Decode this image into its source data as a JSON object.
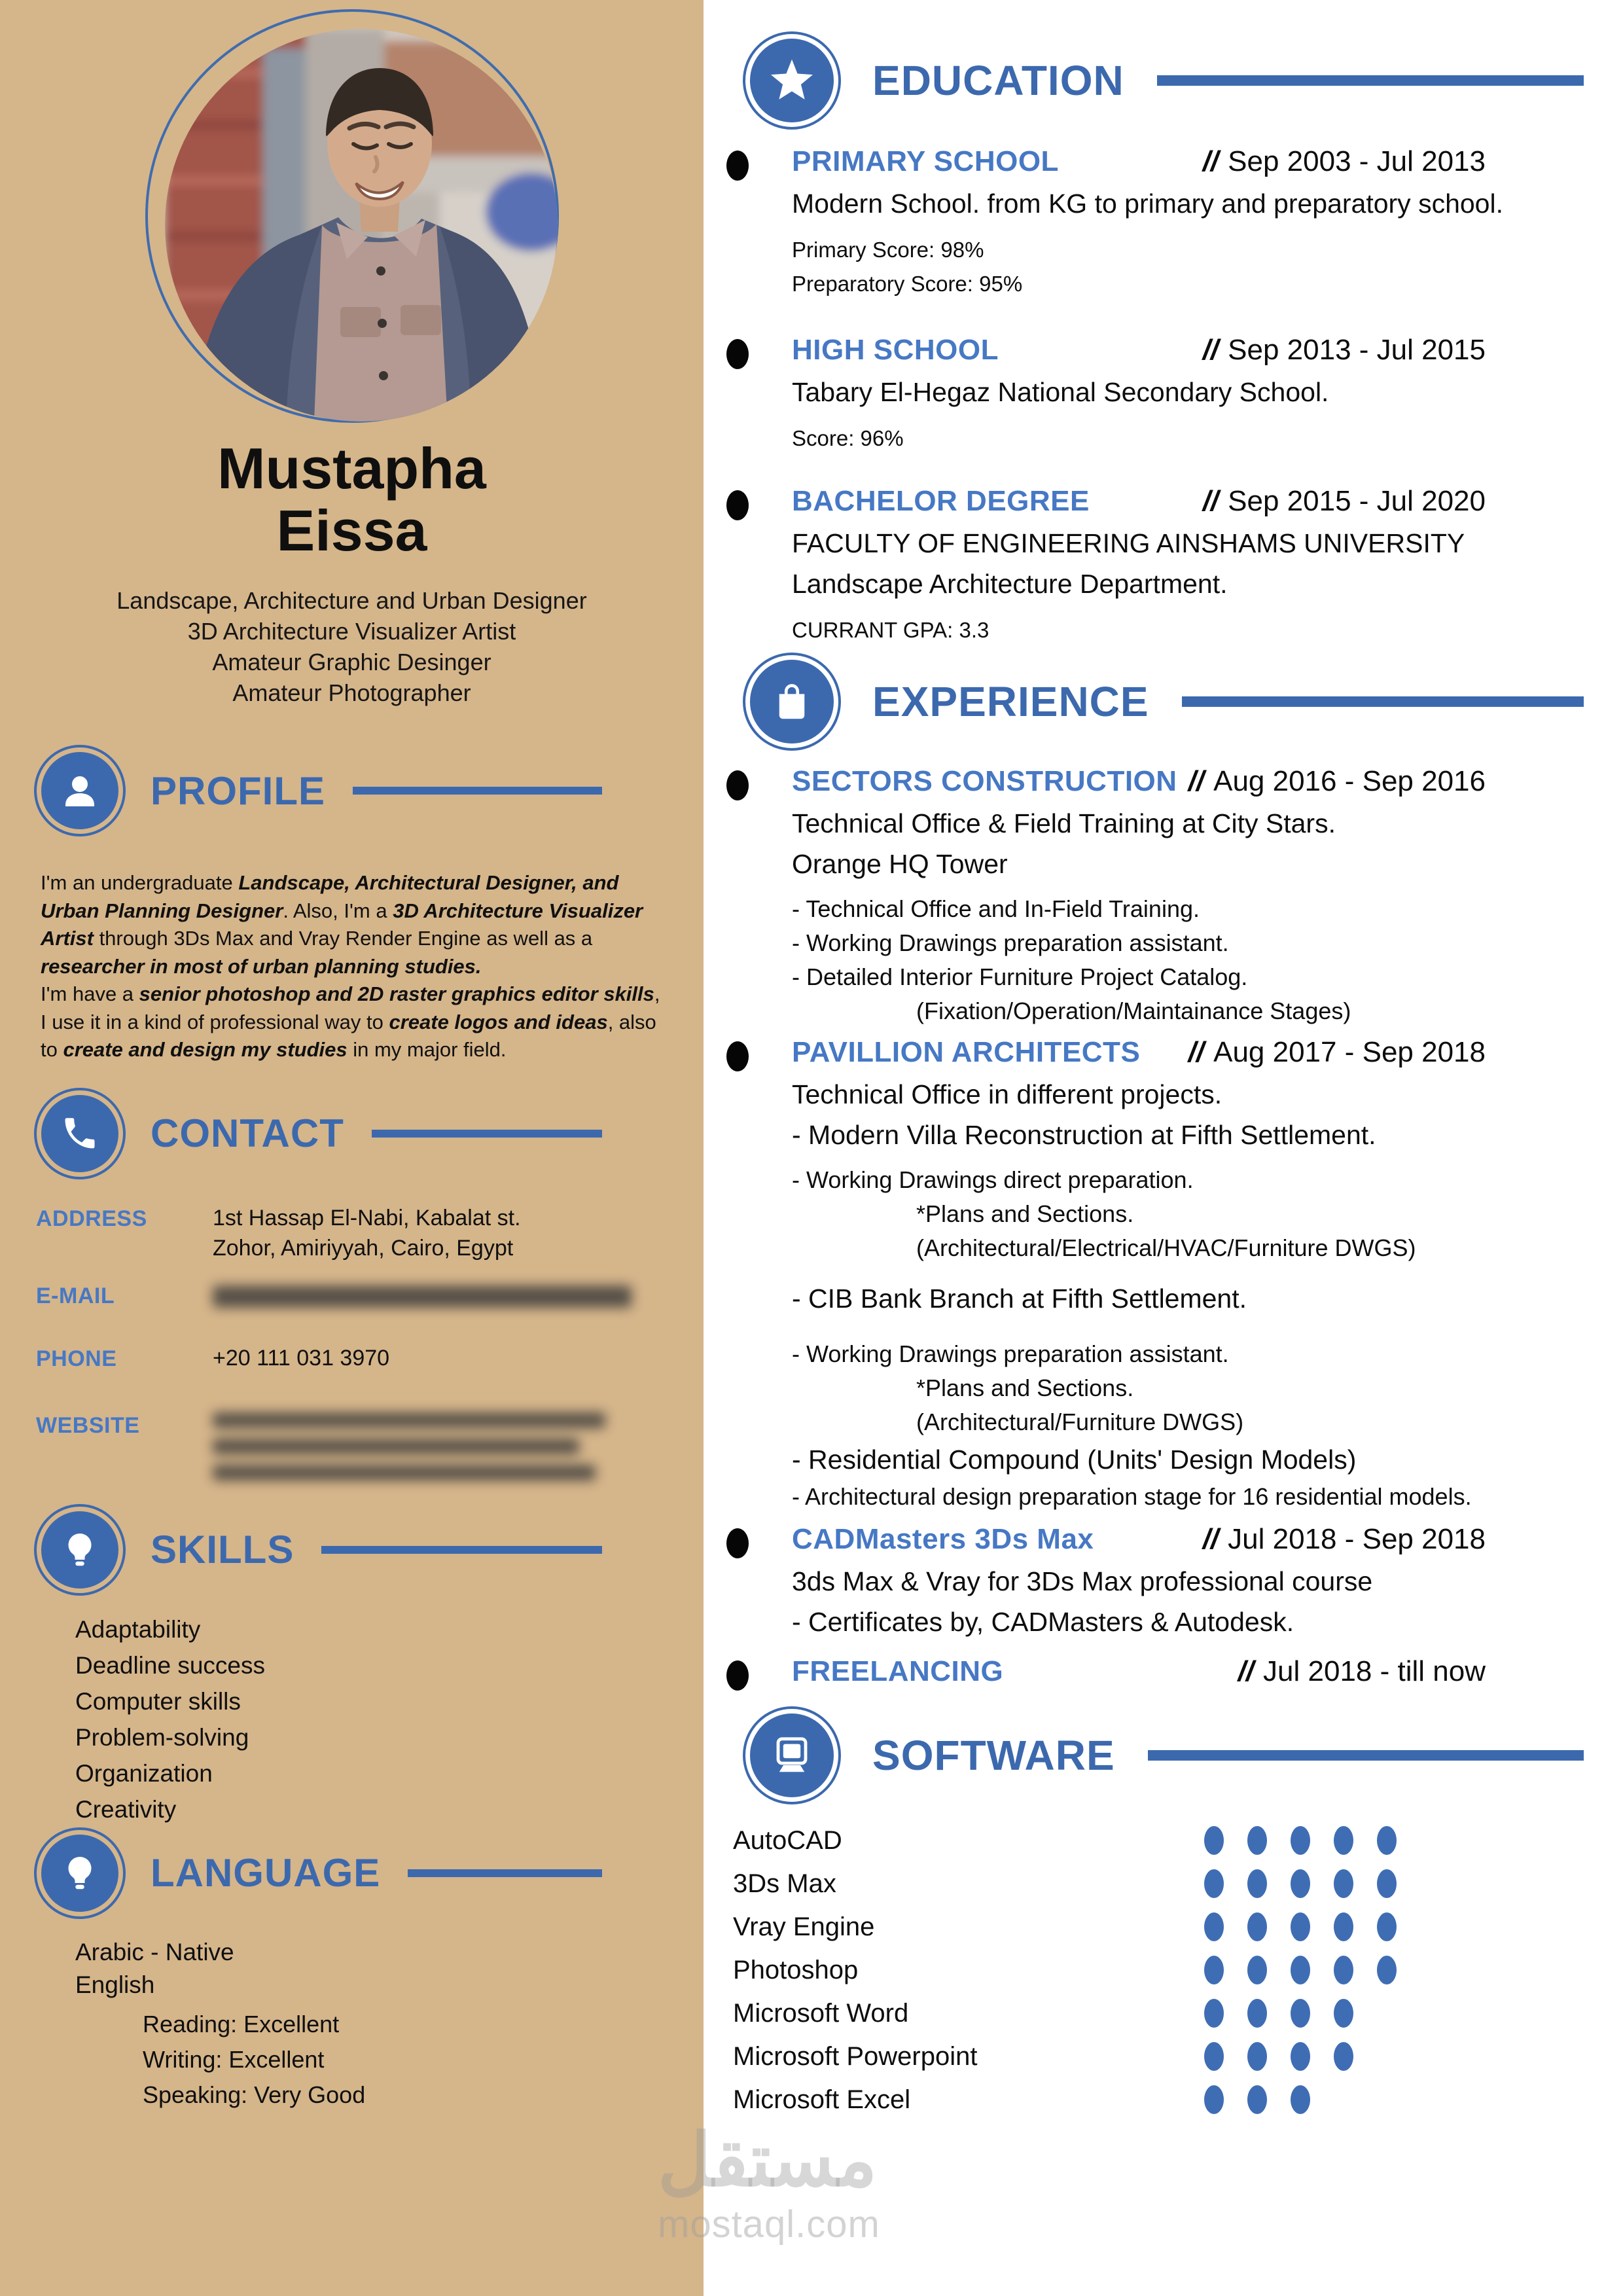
{
  "colors": {
    "accent": "#3c69ae",
    "item_title_blue": "#4678c4",
    "sidebar_bg": "#d5b58a",
    "bullet_black": "#060606",
    "dot_blue": "#3e6db4"
  },
  "sidebar": {
    "name_line1": "Mustapha",
    "name_line2": "Eissa",
    "titles": [
      "Landscape, Architecture and Urban Designer",
      "3D Architecture Visualizer Artist",
      "Amateur Graphic Desinger",
      "Amateur Photographer"
    ],
    "profile": {
      "heading": "PROFILE",
      "paragraph": [
        {
          "t": "I'm an undergraduate ",
          "b": false
        },
        {
          "t": "Landscape, Architectural Designer, and Urban Planning Designer",
          "b": true
        },
        {
          "t": ". Also, I'm a ",
          "b": false
        },
        {
          "t": "3D Architecture Visualizer Artist",
          "b": true
        },
        {
          "t": " through 3Ds Max and Vray Render Engine as well as a ",
          "b": false
        },
        {
          "t": "researcher in most of urban planning studies.",
          "b": true
        },
        {
          "t": "\nI'm have a ",
          "b": false
        },
        {
          "t": "senior photoshop and 2D raster graphics editor skills",
          "b": true
        },
        {
          "t": ", I use it in a kind of professional way to ",
          "b": false
        },
        {
          "t": "create logos and ideas",
          "b": true
        },
        {
          "t": ", also to ",
          "b": false
        },
        {
          "t": "create and design my studies",
          "b": true
        },
        {
          "t": " in my major field.",
          "b": false
        }
      ]
    },
    "contact": {
      "heading": "CONTACT",
      "rows": [
        {
          "label": "ADDRESS",
          "value": "1st Hassap El-Nabi, Kabalat st.\nZohor, Amiriyyah, Cairo, Egypt",
          "redacted": false,
          "lines": 0
        },
        {
          "label": "E-MAIL",
          "value": "",
          "redacted": true,
          "lines": 1
        },
        {
          "label": "PHONE",
          "value": "+20 111 031 3970",
          "redacted": false,
          "lines": 0
        },
        {
          "label": "WEBSITE",
          "value": "",
          "redacted": true,
          "lines": 3
        }
      ]
    },
    "skills": {
      "heading": "SKILLS",
      "items": [
        "Adaptability",
        "Deadline success",
        "Computer skills",
        "Problem-solving",
        "Organization",
        "Creativity"
      ]
    },
    "language": {
      "heading": "LANGUAGE",
      "items": [
        "Arabic - Native",
        "English"
      ],
      "english_details": [
        "Reading: Excellent",
        "Writing: Excellent",
        "Speaking: Very Good"
      ]
    }
  },
  "main": {
    "dates_prefix": "//",
    "education": {
      "heading": "EDUCATION",
      "entries": [
        {
          "title": "PRIMARY SCHOOL",
          "dates": "Sep 2003 - Jul 2013",
          "desc": [
            "Modern School. from KG to primary and preparatory school."
          ],
          "notes": [
            "Primary Score: 98%",
            "Preparatory Score: 95%"
          ]
        },
        {
          "title": "HIGH SCHOOL",
          "dates": "Sep 2013 - Jul 2015",
          "desc": [
            "Tabary El-Hegaz National Secondary School."
          ],
          "notes": [
            "Score: 96%"
          ]
        },
        {
          "title": "BACHELOR DEGREE",
          "dates": "Sep 2015 - Jul 2020",
          "desc": [
            "FACULTY OF ENGINEERING AINSHAMS UNIVERSITY",
            "Landscape Architecture Department."
          ],
          "notes": [
            "CURRANT GPA: 3.3"
          ]
        }
      ]
    },
    "experience": {
      "heading": "EXPERIENCE",
      "entries": [
        {
          "title": "SECTORS CONSTRUCTION",
          "dates": "Aug 2016 - Sep 2016",
          "lines": [
            {
              "t": "Technical Office & Field Training at City Stars.",
              "s": "lg",
              "i": 0,
              "g": ""
            },
            {
              "t": "Orange HQ Tower",
              "s": "lg",
              "i": 0,
              "g": ""
            },
            {
              "t": "- Technical Office and In-Field Training.",
              "s": "sm",
              "i": 0,
              "g": "s"
            },
            {
              "t": "- Working Drawings preparation assistant.",
              "s": "sm",
              "i": 0,
              "g": ""
            },
            {
              "t": "- Detailed Interior Furniture Project Catalog.",
              "s": "sm",
              "i": 0,
              "g": ""
            },
            {
              "t": "(Fixation/Operation/Maintainance Stages)",
              "s": "sm",
              "i": 2,
              "g": ""
            }
          ],
          "mb": "c"
        },
        {
          "title": "PAVILLION ARCHITECTS",
          "dates": "Aug 2017 - Sep 2018",
          "lines": [
            {
              "t": "Technical Office in different projects.",
              "s": "lg",
              "i": 0,
              "g": ""
            },
            {
              "t": "- Modern Villa Reconstruction at Fifth Settlement.",
              "s": "lg",
              "i": 0,
              "g": ""
            },
            {
              "t": "- Working Drawings direct preparation.",
              "s": "sm",
              "i": 0,
              "g": "s"
            },
            {
              "t": "*Plans and Sections.",
              "s": "sm",
              "i": 2,
              "g": ""
            },
            {
              "t": "(Architectural/Electrical/HVAC/Furniture DWGS)",
              "s": "sm",
              "i": 2,
              "g": ""
            },
            {
              "t": "- CIB Bank Branch at Fifth Settlement.",
              "s": "lg",
              "i": 0,
              "g": "m"
            },
            {
              "t": "- Working Drawings preparation assistant.",
              "s": "sm",
              "i": 0,
              "g": "l"
            },
            {
              "t": "*Plans and Sections.",
              "s": "sm",
              "i": 2,
              "g": ""
            },
            {
              "t": "(Architectural/Furniture DWGS)",
              "s": "sm",
              "i": 2,
              "g": ""
            },
            {
              "t": "- Residential Compound (Units' Design Models)",
              "s": "lg",
              "i": 0,
              "g": ""
            },
            {
              "t": "- Architectural design preparation stage for 16 residential models.",
              "s": "sm",
              "i": 0,
              "g": ""
            }
          ],
          "mb": "d"
        },
        {
          "title": "CADMasters 3Ds Max",
          "dates": "Jul 2018 - Sep 2018",
          "lines": [
            {
              "t": "3ds Max & Vray for 3Ds Max professional course",
              "s": "lg",
              "i": 0,
              "g": ""
            },
            {
              "t": "- Certificates by, CADMasters & Autodesk.",
              "s": "lg",
              "i": 0,
              "g": ""
            }
          ],
          "mb": "e"
        },
        {
          "title": "FREELANCING",
          "dates": "Jul 2018 - till now",
          "lines": [],
          "mb": ""
        }
      ]
    },
    "software": {
      "heading": "SOFTWARE",
      "max_level": 5,
      "items": [
        {
          "name": "AutoCAD",
          "level": 5
        },
        {
          "name": "3Ds Max",
          "level": 5
        },
        {
          "name": "Vray Engine",
          "level": 5
        },
        {
          "name": "Photoshop",
          "level": 5
        },
        {
          "name": "Microsoft Word",
          "level": 4
        },
        {
          "name": "Microsoft Powerpoint",
          "level": 4
        },
        {
          "name": "Microsoft Excel",
          "level": 3
        }
      ]
    }
  },
  "watermark": {
    "line1": "مستقل",
    "line2": "mostaql.com"
  }
}
